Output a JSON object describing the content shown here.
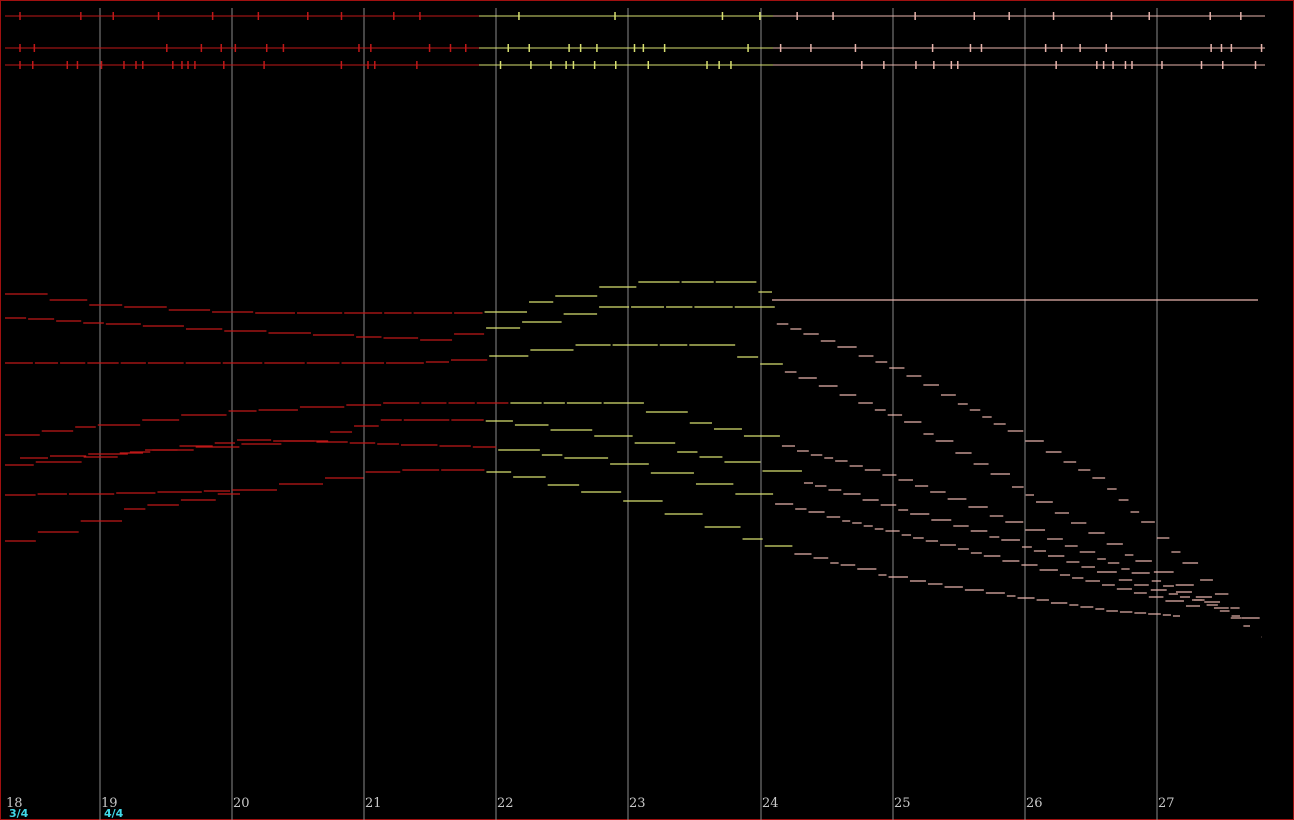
{
  "measures": [
    {
      "number": "18",
      "time_signature": "3/4"
    },
    {
      "number": "19",
      "time_signature": "4/4"
    },
    {
      "number": "20"
    },
    {
      "number": "21"
    },
    {
      "number": "22"
    },
    {
      "number": "23"
    },
    {
      "number": "24"
    },
    {
      "number": "25"
    },
    {
      "number": "26"
    },
    {
      "number": "27"
    }
  ]
}
